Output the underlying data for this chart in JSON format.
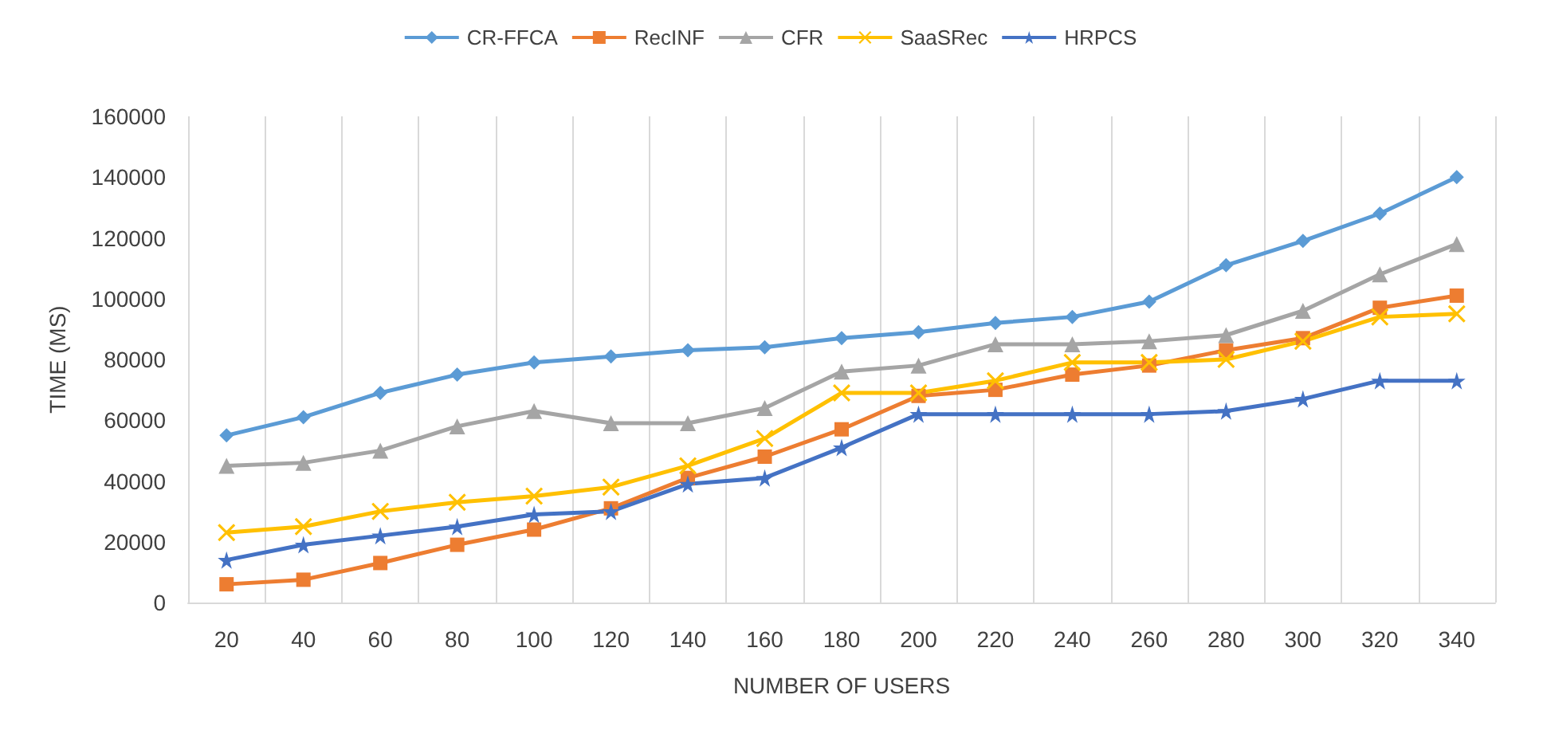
{
  "chart_data": {
    "type": "line",
    "xlabel": "NUMBER OF USERS",
    "ylabel": "TIME (MS)",
    "categories": [
      "20",
      "40",
      "60",
      "80",
      "100",
      "120",
      "140",
      "160",
      "180",
      "200",
      "220",
      "240",
      "260",
      "280",
      "300",
      "320",
      "340"
    ],
    "series": [
      {
        "name": "CR-FFCA",
        "color": "#5b9bd5",
        "marker": "diamond",
        "values": [
          55000,
          61000,
          69000,
          75000,
          79000,
          81000,
          83000,
          84000,
          87000,
          89000,
          92000,
          94000,
          99000,
          111000,
          119000,
          128000,
          140000
        ]
      },
      {
        "name": "RecINF",
        "color": "#ed7d31",
        "marker": "square",
        "values": [
          6000,
          7500,
          13000,
          19000,
          24000,
          31000,
          41000,
          48000,
          57000,
          68000,
          70000,
          75000,
          78000,
          83000,
          87000,
          97000,
          101000
        ]
      },
      {
        "name": "CFR",
        "color": "#a5a5a5",
        "marker": "triangle",
        "values": [
          45000,
          46000,
          50000,
          58000,
          63000,
          59000,
          59000,
          64000,
          76000,
          78000,
          85000,
          85000,
          86000,
          88000,
          96000,
          108000,
          118000
        ]
      },
      {
        "name": "SaaSRec",
        "color": "#ffc000",
        "marker": "cross",
        "values": [
          23000,
          25000,
          30000,
          33000,
          35000,
          38000,
          45000,
          54000,
          69000,
          69000,
          73000,
          79000,
          79000,
          80000,
          86000,
          94000,
          95000
        ]
      },
      {
        "name": "HRPCS",
        "color": "#4472c4",
        "marker": "star",
        "values": [
          14000,
          19000,
          22000,
          25000,
          29000,
          30000,
          39000,
          41000,
          51000,
          62000,
          62000,
          62000,
          62000,
          63000,
          67000,
          73000,
          73000
        ]
      }
    ],
    "ylim": [
      0,
      160000
    ],
    "yticks": [
      0,
      20000,
      40000,
      60000,
      80000,
      100000,
      120000,
      140000,
      160000
    ],
    "grid": "x",
    "legend": "top"
  }
}
